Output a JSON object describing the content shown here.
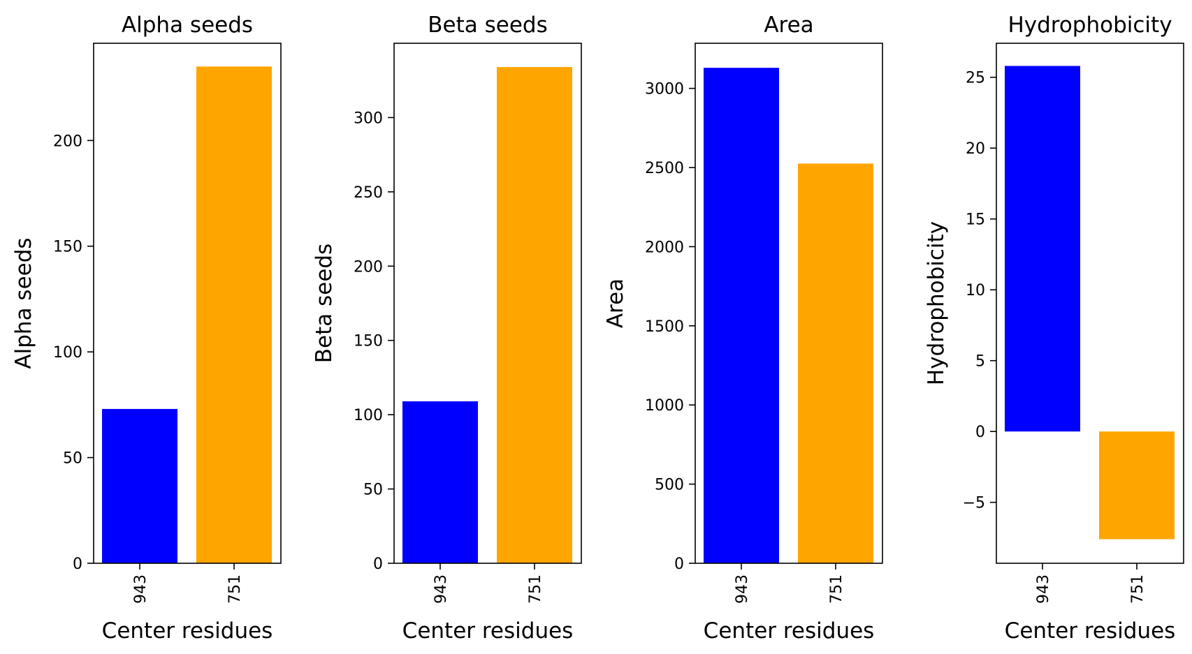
{
  "chart_data": [
    {
      "type": "bar",
      "title": "Alpha seeds",
      "xlabel": "Center residues",
      "ylabel": "Alpha seeds",
      "categories": [
        "943",
        "751"
      ],
      "values": [
        73,
        235
      ],
      "colors": [
        "#0000ff",
        "#ffa500"
      ],
      "ylim": [
        0,
        246
      ],
      "yticks": [
        0,
        50,
        100,
        150,
        200
      ],
      "ytick_labels": [
        "0",
        "50",
        "100",
        "150",
        "200"
      ],
      "grid": false
    },
    {
      "type": "bar",
      "title": "Beta seeds",
      "xlabel": "Center residues",
      "ylabel": "Beta seeds",
      "categories": [
        "943",
        "751"
      ],
      "values": [
        109,
        334
      ],
      "colors": [
        "#0000ff",
        "#ffa500"
      ],
      "ylim": [
        0,
        350
      ],
      "yticks": [
        0,
        50,
        100,
        150,
        200,
        250,
        300
      ],
      "ytick_labels": [
        "0",
        "50",
        "100",
        "150",
        "200",
        "250",
        "300"
      ],
      "grid": false
    },
    {
      "type": "bar",
      "title": "Area",
      "xlabel": "Center residues",
      "ylabel": "Area",
      "categories": [
        "943",
        "751"
      ],
      "values": [
        3130,
        2525
      ],
      "colors": [
        "#0000ff",
        "#ffa500"
      ],
      "ylim": [
        0,
        3285
      ],
      "yticks": [
        0,
        500,
        1000,
        1500,
        2000,
        2500,
        3000
      ],
      "ytick_labels": [
        "0",
        "500",
        "1000",
        "1500",
        "2000",
        "2500",
        "3000"
      ],
      "grid": false
    },
    {
      "type": "bar",
      "title": "Hydrophobicity",
      "xlabel": "Center residues",
      "ylabel": "Hydrophobicity",
      "categories": [
        "943",
        "751"
      ],
      "values": [
        25.8,
        -7.6
      ],
      "colors": [
        "#0000ff",
        "#ffa500"
      ],
      "ylim": [
        -9.3,
        27.4
      ],
      "yticks": [
        -5,
        0,
        5,
        10,
        15,
        20,
        25
      ],
      "ytick_labels": [
        "−5",
        "0",
        "5",
        "10",
        "15",
        "20",
        "25"
      ],
      "grid": false
    }
  ]
}
